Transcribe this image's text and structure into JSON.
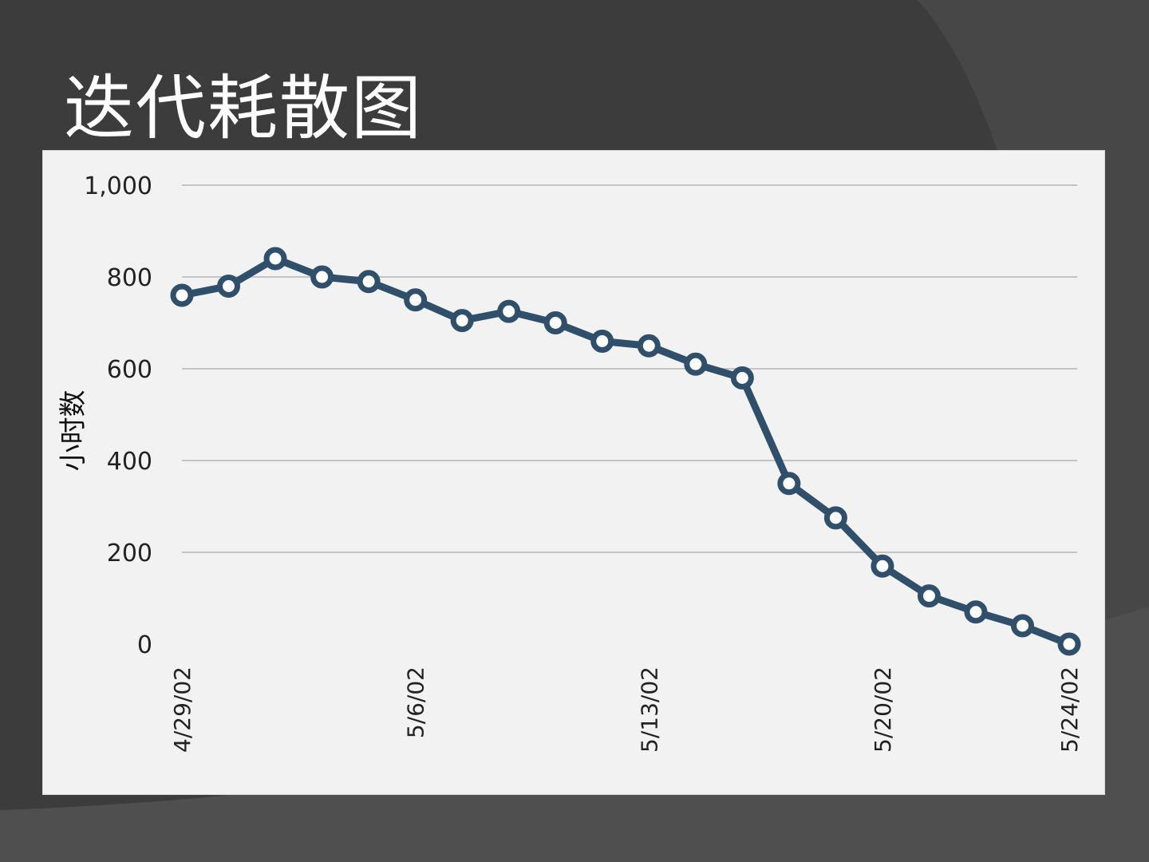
{
  "slide": {
    "title": "迭代耗散图",
    "background_color": "#3c3c3c",
    "title_color": "#ffffff"
  },
  "chart_data": {
    "type": "line",
    "title": "",
    "xlabel": "",
    "ylabel": "小时数",
    "ylim": [
      0,
      1000
    ],
    "y_ticks": [
      0,
      200,
      400,
      600,
      800,
      1000
    ],
    "y_tick_labels": [
      "0",
      "200",
      "400",
      "600",
      "800",
      "1,000"
    ],
    "x_tick_labels": [
      "4/29/02",
      "5/6/02",
      "5/13/02",
      "5/20/02",
      "5/24/02"
    ],
    "grid": true,
    "legend": "none",
    "line_color": "#2f4f6a",
    "series": [
      {
        "x": [
          "4/29/02",
          "4/30/02",
          "5/1/02",
          "5/2/02",
          "5/3/02",
          "5/6/02",
          "5/7/02",
          "5/8/02",
          "5/9/02",
          "5/10/02",
          "5/13/02",
          "5/14/02",
          "5/15/02",
          "5/16/02",
          "5/17/02",
          "5/20/02",
          "5/21/02",
          "5/22/02",
          "5/23/02",
          "5/24/02"
        ],
        "values": [
          760,
          780,
          840,
          800,
          790,
          750,
          705,
          725,
          700,
          660,
          650,
          610,
          580,
          350,
          275,
          170,
          105,
          70,
          40,
          0
        ]
      }
    ]
  }
}
